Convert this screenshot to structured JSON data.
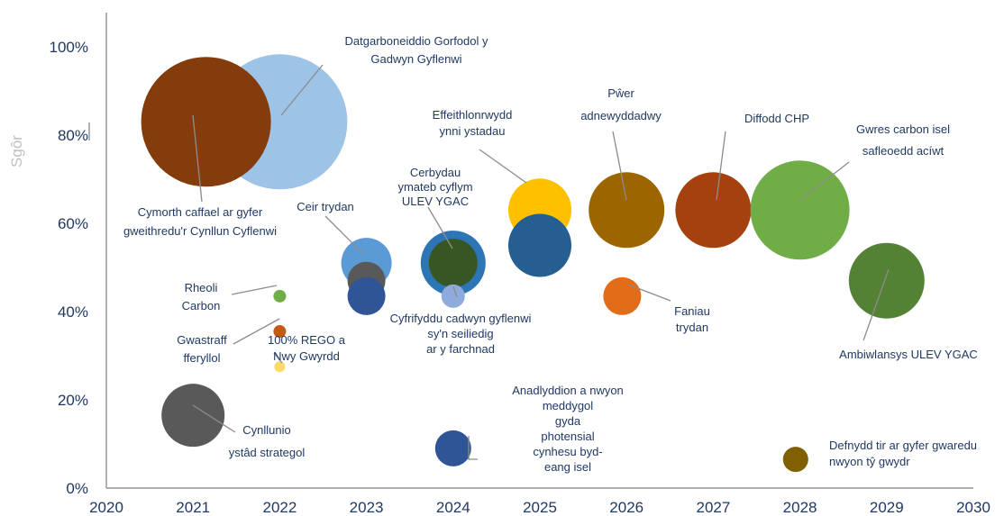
{
  "chart_data": {
    "type": "bubble",
    "title": "",
    "xlabel": "",
    "ylabel": "Sgôr",
    "xlim": [
      2020,
      2030
    ],
    "ylim": [
      0,
      105
    ],
    "x_ticks": [
      "2020",
      "2021",
      "2022",
      "2023",
      "2024",
      "2025",
      "2026",
      "2027",
      "2028",
      "2029",
      "2030"
    ],
    "y_ticks": [
      "0%",
      "20%",
      "40%",
      "60%",
      "80%",
      "100%"
    ],
    "y_tick_values": [
      0,
      20,
      40,
      60,
      80,
      100
    ],
    "grid": false,
    "legend": "none",
    "points": [
      {
        "x": 2022.0,
        "y": 83,
        "size": 75,
        "color": "#9dc3e6",
        "label": [
          "Datgarboneiddio Gorfodol y",
          "Gadwyn Gyflenwi"
        ]
      },
      {
        "x": 2021.15,
        "y": 83,
        "size": 72,
        "color": "#843c0c",
        "label": [
          "Cymorth caffael ar gyfer",
          "gweithredu'r Cynllun Cyflenwi"
        ]
      },
      {
        "x": 2023.0,
        "y": 51,
        "size": 28,
        "color": "#5b9bd5",
        "label": [
          "Ceir trydan"
        ]
      },
      {
        "x": 2023.0,
        "y": 47,
        "size": 21,
        "color": "#595959",
        "label": []
      },
      {
        "x": 2023.0,
        "y": 43.5,
        "size": 21,
        "color": "#2f5597",
        "label": []
      },
      {
        "x": 2024.0,
        "y": 51,
        "size": 36,
        "color": "#2e75b6",
        "label": [
          "Cerbydau",
          "ymateb cyflym",
          "ULEV YGAC"
        ]
      },
      {
        "x": 2024.0,
        "y": 51,
        "size": 27,
        "color": "#375623",
        "label": []
      },
      {
        "x": 2024.0,
        "y": 43.5,
        "size": 13,
        "color": "#8faadc",
        "label": [
          "Cyfrifyddu cadwyn gyflenwi",
          "sy'n seiliedig",
          "ar y farchnad"
        ]
      },
      {
        "x": 2025.0,
        "y": 63,
        "size": 35,
        "color": "#ffc000",
        "label": [
          "Effeithlonrwydd",
          "ynni ystadau"
        ]
      },
      {
        "x": 2025.0,
        "y": 55,
        "size": 35,
        "color": "#255e91",
        "label": []
      },
      {
        "x": 2026.0,
        "y": 63,
        "size": 42,
        "color": "#9c6500",
        "label": [
          "Pŵer",
          "adnewyddadwy"
        ]
      },
      {
        "x": 2027.0,
        "y": 63,
        "size": 42,
        "color": "#a5400f",
        "label": [
          "Diffodd CHP"
        ]
      },
      {
        "x": 2028.0,
        "y": 63,
        "size": 55,
        "color": "#70ad47",
        "label": [
          "Gwres carbon isel",
          "safleoedd acíwt"
        ]
      },
      {
        "x": 2029.0,
        "y": 47,
        "size": 42,
        "color": "#548235",
        "label": [
          "Ambiwlansys ULEV YGAC"
        ]
      },
      {
        "x": 2025.95,
        "y": 43.5,
        "size": 21,
        "color": "#e36c18",
        "label": [
          "Faniau",
          "trydan"
        ]
      },
      {
        "x": 2022.0,
        "y": 43.5,
        "size": 7,
        "color": "#70ad47",
        "label": [
          "Rheoli",
          "Carbon"
        ]
      },
      {
        "x": 2022.0,
        "y": 35.5,
        "size": 7,
        "color": "#c55a11",
        "label": [
          "Gwastraff",
          "fferyllol"
        ]
      },
      {
        "x": 2022.0,
        "y": 27.5,
        "size": 6,
        "color": "#ffd966",
        "label": [
          "100% REGO a",
          "Nwy Gwyrdd"
        ]
      },
      {
        "x": 2021.0,
        "y": 16.5,
        "size": 35,
        "color": "#595959",
        "label": [
          "Cynllunio",
          "ystâd strategol"
        ]
      },
      {
        "x": 2024.0,
        "y": 9,
        "size": 20,
        "color": "#2f5597",
        "label": [
          "Anadlyddion a nwyon",
          "meddygol",
          "gyda",
          "photensial",
          "cynhesu byd-",
          "eang isel"
        ]
      },
      {
        "x": 2027.95,
        "y": 6.5,
        "size": 14,
        "color": "#806000",
        "label": [
          "Defnydd tir ar gyfer gwaredu",
          "nwyon tŷ gwydr"
        ]
      }
    ]
  }
}
